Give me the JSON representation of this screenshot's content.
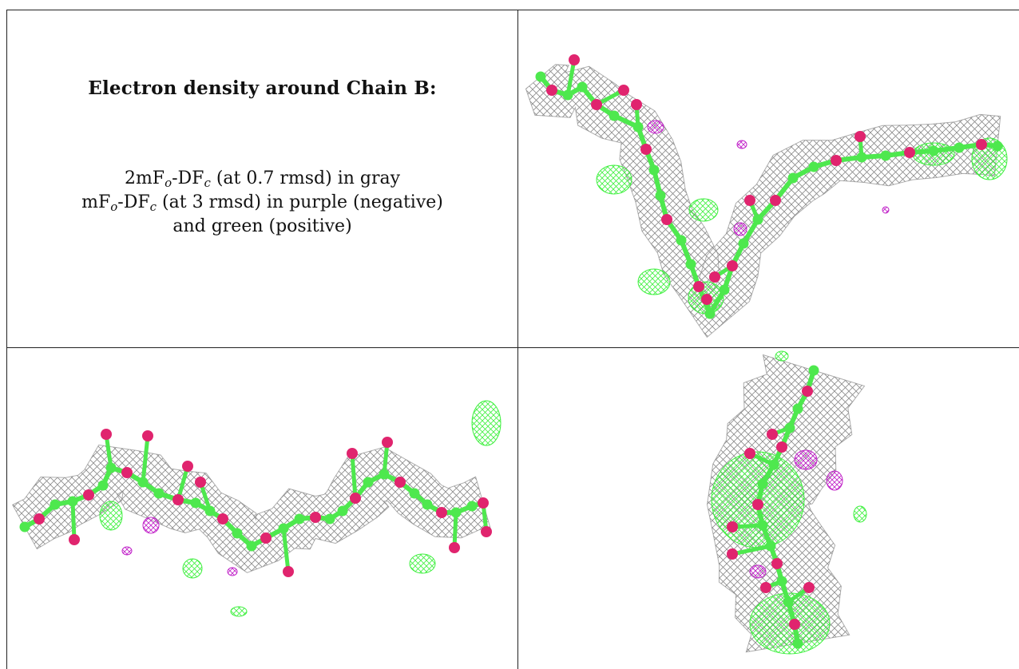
{
  "caption": {
    "title": "Electron density around Chain B:",
    "line1_parts": [
      "2mF",
      "o",
      "-DF",
      "c",
      " (at 0.7 rmsd) in gray"
    ],
    "line2_parts": [
      "mF",
      "o",
      "-DF",
      "c",
      " (at 3 rmsd) in purple (negative)"
    ],
    "line3": "and green (positive)"
  },
  "colors": {
    "mesh_2fofc": "#8a8a8a",
    "diff_negative": "#c020c8",
    "diff_positive": "#3ef03e",
    "carbon_atoms": "#4ee84e",
    "oxygen_atoms": "#e0246e",
    "grid_lines": "#222222"
  },
  "panels": [
    {
      "id": "top-right",
      "view": "Chain B density view 1"
    },
    {
      "id": "bottom-left",
      "view": "Chain B density view 2"
    },
    {
      "id": "bottom-right",
      "view": "Chain B density view 3"
    }
  ]
}
